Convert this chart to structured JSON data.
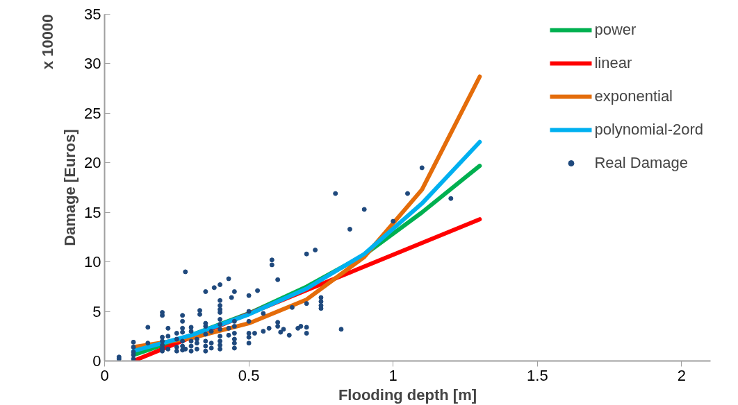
{
  "chart_data": {
    "type": "scatter",
    "xlabel": "Flooding depth [m]",
    "ylabel": "Damage [Euros]",
    "annotations": [
      "x 10000"
    ],
    "xlim": [
      0,
      2.1
    ],
    "ylim": [
      0,
      35
    ],
    "xticks": [
      0,
      0.5,
      1,
      1.5,
      2
    ],
    "yticks": [
      0,
      5,
      10,
      15,
      20,
      25,
      30,
      35
    ],
    "grid": false,
    "legend": "top right",
    "series": [
      {
        "name": "power",
        "type": "line",
        "color": "#00b050",
        "marker": "none",
        "x": [
          0.1,
          0.3,
          0.5,
          0.7,
          0.9,
          1.1,
          1.3
        ],
        "values": [
          0.6,
          2.6,
          4.8,
          7.5,
          10.7,
          15.0,
          19.7
        ]
      },
      {
        "name": "linear",
        "type": "line",
        "color": "#ff0000",
        "marker": "none",
        "x": [
          0.1,
          1.3
        ],
        "values": [
          0,
          14.3
        ]
      },
      {
        "name": "exponential",
        "type": "line",
        "color": "#e46c0a",
        "marker": "none",
        "x": [
          0.1,
          0.3,
          0.5,
          0.7,
          0.9,
          1.1,
          1.3
        ],
        "values": [
          1.4,
          2.3,
          3.8,
          6.2,
          10.5,
          17.3,
          28.7
        ]
      },
      {
        "name": "polynomial-2ord",
        "type": "line",
        "color": "#00b0f0",
        "marker": "none",
        "x": [
          0.1,
          0.3,
          0.5,
          0.7,
          0.9,
          1.1,
          1.3
        ],
        "values": [
          1.0,
          2.6,
          4.7,
          7.3,
          10.8,
          15.9,
          22.1
        ]
      },
      {
        "name": "Real Damage",
        "color": "#1f497d",
        "marker": "circle",
        "x": [
          0.05,
          0.05,
          0.1,
          0.1,
          0.1,
          0.1,
          0.1,
          0.15,
          0.15,
          0.2,
          0.2,
          0.2,
          0.2,
          0.22,
          0.28,
          0.27,
          0.27,
          0.35,
          0.38,
          0.4,
          0.43,
          0.45,
          0.44,
          0.5,
          0.53,
          0.58,
          0.58,
          0.6,
          0.33,
          0.33,
          0.4,
          0.4,
          0.4,
          0.4,
          0.8,
          1.05,
          1.2,
          0.9,
          0.85,
          1.0,
          0.7,
          0.73,
          0.75,
          0.75,
          0.75,
          0.75,
          0.7,
          0.65,
          0.82,
          0.7,
          0.7,
          0.68,
          0.67,
          0.64,
          0.62,
          0.61,
          0.6,
          0.6,
          1.1,
          0.2,
          0.2,
          0.2,
          0.2,
          0.22,
          0.22,
          0.25,
          0.25,
          0.25,
          0.25,
          0.27,
          0.27,
          0.27,
          0.27,
          0.27,
          0.28,
          0.3,
          0.3,
          0.3,
          0.3,
          0.3,
          0.32,
          0.32,
          0.32,
          0.35,
          0.35,
          0.35,
          0.35,
          0.35,
          0.35,
          0.37,
          0.37,
          0.37,
          0.4,
          0.4,
          0.4,
          0.4,
          0.4,
          0.4,
          0.4,
          0.43,
          0.43,
          0.45,
          0.45,
          0.45,
          0.45,
          0.45,
          0.45,
          0.5,
          0.5,
          0.5,
          0.5,
          0.5,
          0.52,
          0.55,
          0.55,
          0.57
        ],
        "values": [
          0.4,
          0.2,
          1.9,
          1.4,
          0.6,
          0.2,
          0.9,
          3.4,
          1.8,
          4.6,
          4.9,
          2.4,
          1.2,
          3.3,
          9.0,
          4.6,
          4.0,
          7.0,
          7.4,
          7.7,
          8.3,
          7.0,
          6.4,
          6.6,
          7.1,
          10.2,
          9.7,
          8.2,
          5.1,
          4.7,
          6.1,
          5.6,
          5.2,
          4.9,
          16.9,
          16.9,
          16.4,
          15.3,
          13.3,
          14.1,
          10.8,
          11.2,
          6.4,
          6.0,
          5.6,
          5.3,
          5.8,
          5.4,
          3.2,
          3.4,
          2.8,
          3.5,
          3.3,
          2.6,
          3.2,
          2.9,
          3.9,
          3.5,
          19.5,
          1.0,
          1.3,
          1.6,
          2.0,
          1.2,
          2.5,
          1.0,
          1.4,
          2.2,
          2.8,
          1.1,
          1.5,
          2.0,
          2.9,
          3.3,
          1.2,
          1.0,
          1.5,
          2.0,
          3.0,
          3.4,
          1.2,
          1.8,
          2.2,
          1.0,
          1.5,
          2.0,
          2.7,
          3.5,
          3.8,
          1.3,
          1.8,
          3.0,
          1.2,
          1.6,
          2.0,
          2.5,
          3.2,
          3.7,
          4.2,
          2.6,
          3.3,
          1.3,
          1.8,
          2.2,
          2.8,
          3.5,
          4.0,
          1.8,
          2.4,
          2.8,
          4.0,
          5.0,
          2.8,
          3.0,
          4.8,
          3.3
        ]
      }
    ]
  }
}
